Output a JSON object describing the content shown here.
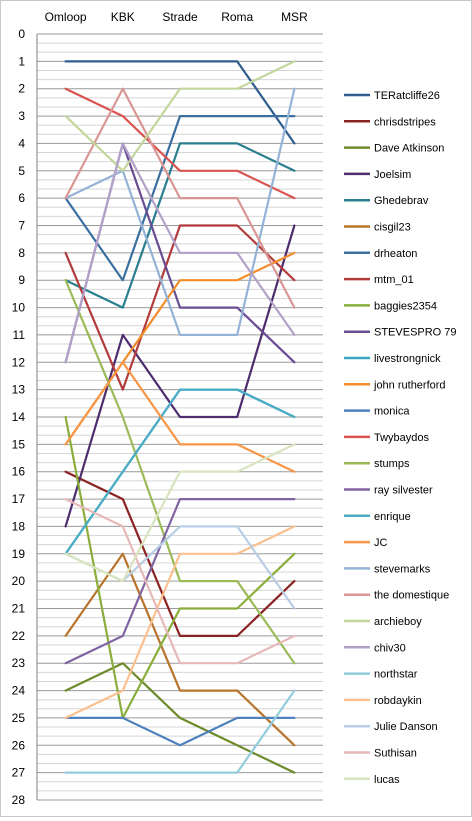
{
  "chart_data": {
    "type": "line",
    "title": "",
    "xlabel": "",
    "ylabel": "",
    "categories": [
      "Omloop",
      "KBK",
      "Strade",
      "Roma",
      "MSR"
    ],
    "yaxis": {
      "min": 0,
      "max": 28,
      "step": 1,
      "reversed": true,
      "ticks": [
        0,
        1,
        2,
        3,
        4,
        5,
        6,
        7,
        8,
        9,
        10,
        11,
        12,
        13,
        14,
        15,
        16,
        17,
        18,
        19,
        20,
        21,
        22,
        23,
        24,
        25,
        26,
        27,
        28
      ]
    },
    "x_axis_position": "top",
    "grid": true,
    "legend_position": "right",
    "series": [
      {
        "name": "TERatcliffe26",
        "color": "#2F5D8C",
        "values": [
          1,
          1,
          1,
          1,
          4
        ]
      },
      {
        "name": "chrisdstripes",
        "color": "#8B2323",
        "values": [
          16,
          17,
          22,
          22,
          20
        ]
      },
      {
        "name": "Dave Atkinson",
        "color": "#6E8B2C",
        "values": [
          24,
          23,
          25,
          26,
          27
        ]
      },
      {
        "name": "Joelsim",
        "color": "#4E2D6E",
        "values": [
          18,
          11,
          14,
          14,
          7
        ]
      },
      {
        "name": "Ghedebrav",
        "color": "#2A7F8E",
        "values": [
          9,
          10,
          4,
          4,
          5
        ]
      },
      {
        "name": "cisgil23",
        "color": "#B8742C",
        "values": [
          22,
          19,
          24,
          24,
          26
        ]
      },
      {
        "name": "drheaton",
        "color": "#3B6FA0",
        "values": [
          6,
          9,
          3,
          3,
          3
        ]
      },
      {
        "name": "mtm_01",
        "color": "#B23B3B",
        "values": [
          8,
          13,
          7,
          7,
          9
        ]
      },
      {
        "name": "baggies2354",
        "color": "#8AAE3C",
        "values": [
          14,
          25,
          21,
          21,
          19
        ]
      },
      {
        "name": "STEVESPRO 79",
        "color": "#6A4C93",
        "values": [
          12,
          4,
          10,
          10,
          12
        ]
      },
      {
        "name": "livestrongnick",
        "color": "#3BA7C4",
        "values": [
          19,
          16,
          13,
          13,
          14
        ]
      },
      {
        "name": "john rutherford",
        "color": "#F28C28",
        "values": [
          15,
          12,
          9,
          9,
          8
        ]
      },
      {
        "name": "monica",
        "color": "#4F81BD",
        "values": [
          25,
          25,
          26,
          25,
          25
        ]
      },
      {
        "name": "Twybaydos",
        "color": "#D9534F",
        "values": [
          2,
          3,
          5,
          5,
          6
        ]
      },
      {
        "name": "stumps",
        "color": "#9BBB59",
        "values": [
          9,
          14,
          20,
          20,
          23
        ]
      },
      {
        "name": "ray silvester",
        "color": "#8064A2",
        "values": [
          23,
          22,
          17,
          17,
          17
        ]
      },
      {
        "name": "enrique",
        "color": "#4BACC6",
        "values": [
          19,
          16,
          13,
          13,
          14
        ]
      },
      {
        "name": "JC",
        "color": "#F79646",
        "values": [
          15,
          12,
          15,
          15,
          16
        ]
      },
      {
        "name": "stevemarks",
        "color": "#95B3D7",
        "values": [
          6,
          5,
          11,
          11,
          2
        ]
      },
      {
        "name": "the domestique",
        "color": "#D99694",
        "values": [
          6,
          2,
          6,
          6,
          10
        ]
      },
      {
        "name": "archieboy",
        "color": "#C3D69B",
        "values": [
          3,
          5,
          2,
          2,
          1
        ]
      },
      {
        "name": "chiv30",
        "color": "#B3A2C7",
        "values": [
          12,
          4,
          8,
          8,
          11
        ]
      },
      {
        "name": "northstar",
        "color": "#93CDDD",
        "values": [
          27,
          27,
          27,
          27,
          24
        ]
      },
      {
        "name": "robdaykin",
        "color": "#FAC090",
        "values": [
          25,
          24,
          19,
          19,
          18
        ]
      },
      {
        "name": "Julie Danson",
        "color": "#B9CDE5",
        "values": [
          19,
          20,
          18,
          18,
          21
        ]
      },
      {
        "name": "Suthisan",
        "color": "#E6B9B8",
        "values": [
          17,
          18,
          23,
          23,
          22
        ]
      },
      {
        "name": "lucas",
        "color": "#D7E4BD",
        "values": [
          19,
          20,
          16,
          16,
          15
        ]
      }
    ]
  }
}
